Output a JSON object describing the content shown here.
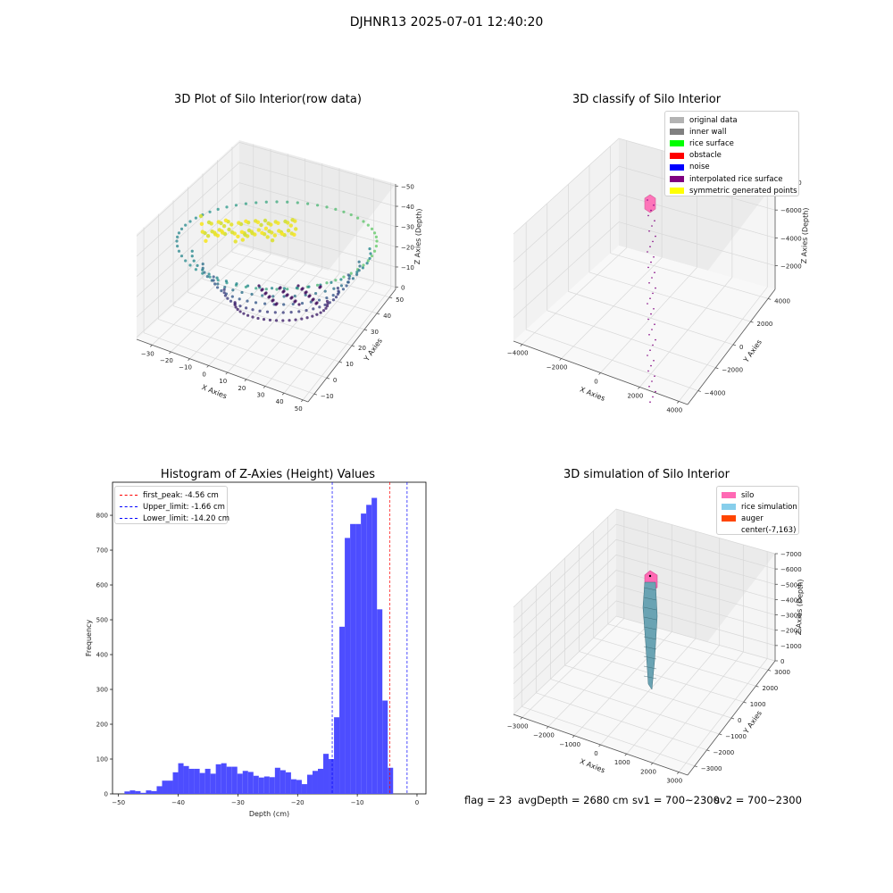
{
  "suptitle": "DJHNR13 2025-07-01 12:40:20",
  "footer": {
    "flag": "flag = 23",
    "avg_depth": "avgDepth = 2680 cm",
    "sv1": "sv1 = 700~2300",
    "sv2": "sv2 = 700~2300"
  },
  "chart_data": [
    {
      "type": "scatter3d",
      "title": "3D Plot of Silo Interior(row data)",
      "xlabel": "X Axies",
      "ylabel": "Y Axies",
      "zlabel": "Z Axies (Depth)",
      "xticks": [
        "−30",
        "−20",
        "−10",
        "0",
        "10",
        "20",
        "30",
        "40",
        "50"
      ],
      "yticks": [
        "−10",
        "0",
        "10",
        "20",
        "30",
        "40",
        "50"
      ],
      "zticks": [
        "0",
        "−10",
        "−20",
        "−30",
        "−40",
        "−50"
      ],
      "xlim": [
        -35,
        50
      ],
      "ylim": [
        -15,
        50
      ],
      "zlim": [
        -52,
        2
      ],
      "colormap": "viridis"
    },
    {
      "type": "scatter3d",
      "title": "3D classify of Silo Interior",
      "xlabel": "X Axies",
      "ylabel": "Y Axies",
      "zlabel": "Z Axies (Depth)",
      "xticks": [
        "−4000",
        "−2000",
        "0",
        "2000",
        "4000"
      ],
      "yticks": [
        "−4000",
        "−2000",
        "0",
        "2000",
        "4000"
      ],
      "zticks": [
        "−2000",
        "−4000",
        "−6000",
        "−8000"
      ],
      "legend": [
        {
          "label": "original data",
          "color": "#b3b3b3"
        },
        {
          "label": "inner wall",
          "color": "#808080"
        },
        {
          "label": "rice surface",
          "color": "#00ff00"
        },
        {
          "label": "obstacle",
          "color": "#ff0000"
        },
        {
          "label": "noise",
          "color": "#0000ff"
        },
        {
          "label": "interpolated rice surface",
          "color": "#800080"
        },
        {
          "label": "symmetric generated points",
          "color": "#ffff00"
        }
      ]
    },
    {
      "type": "bar",
      "title": "Histogram of Z-Axies (Height) Values",
      "xlabel": "Depth (cm)",
      "ylabel": "Frequency",
      "xlim": [
        -51,
        1.5
      ],
      "ylim": [
        0,
        895
      ],
      "xticks": [
        -50,
        -40,
        -30,
        -20,
        -10,
        0
      ],
      "yticks": [
        0,
        100,
        200,
        300,
        400,
        500,
        600,
        700,
        800
      ],
      "bin_width": 0.9,
      "bar_color": "#4d4dff",
      "bins": [
        [
          -49.0,
          7
        ],
        [
          -48.1,
          10
        ],
        [
          -47.2,
          8
        ],
        [
          -46.3,
          3
        ],
        [
          -45.4,
          10
        ],
        [
          -44.5,
          8
        ],
        [
          -43.6,
          22
        ],
        [
          -42.7,
          38
        ],
        [
          -41.8,
          38
        ],
        [
          -40.9,
          62
        ],
        [
          -40.0,
          88
        ],
        [
          -39.1,
          80
        ],
        [
          -38.2,
          72
        ],
        [
          -37.3,
          72
        ],
        [
          -36.4,
          60
        ],
        [
          -35.5,
          72
        ],
        [
          -34.6,
          58
        ],
        [
          -33.7,
          85
        ],
        [
          -32.8,
          88
        ],
        [
          -31.9,
          78
        ],
        [
          -31.0,
          78
        ],
        [
          -30.1,
          58
        ],
        [
          -29.2,
          66
        ],
        [
          -28.3,
          63
        ],
        [
          -27.4,
          52
        ],
        [
          -26.5,
          47
        ],
        [
          -25.6,
          50
        ],
        [
          -24.7,
          48
        ],
        [
          -23.8,
          75
        ],
        [
          -22.9,
          68
        ],
        [
          -22.0,
          62
        ],
        [
          -21.1,
          42
        ],
        [
          -20.2,
          40
        ],
        [
          -19.3,
          28
        ],
        [
          -18.4,
          55
        ],
        [
          -17.5,
          66
        ],
        [
          -16.6,
          72
        ],
        [
          -15.7,
          115
        ],
        [
          -14.8,
          100
        ],
        [
          -13.9,
          220
        ],
        [
          -13.0,
          480
        ],
        [
          -12.1,
          735
        ],
        [
          -11.2,
          775
        ],
        [
          -10.3,
          775
        ],
        [
          -9.4,
          805
        ],
        [
          -8.5,
          830
        ],
        [
          -7.6,
          850
        ],
        [
          -6.7,
          530
        ],
        [
          -5.8,
          268
        ],
        [
          -4.9,
          75
        ]
      ],
      "vlines": [
        {
          "label": "first_peak: -4.56 cm",
          "x": -4.56,
          "color": "#ff0000"
        },
        {
          "label": "Upper_limit: -1.66 cm",
          "x": -1.66,
          "color": "#0000ff"
        },
        {
          "label": "Lower_limit: -14.20 cm",
          "x": -14.2,
          "color": "#0000ff"
        }
      ],
      "legend_position": "upper-left"
    },
    {
      "type": "surface3d",
      "title": "3D simulation of Silo Interior",
      "xlabel": "X Axies",
      "ylabel": "Y Axies",
      "zlabel": "Z Axies (Depth)",
      "xticks": [
        "−3000",
        "−2000",
        "−1000",
        "0",
        "1000",
        "2000",
        "3000"
      ],
      "yticks": [
        "−3000",
        "−2000",
        "−1000",
        "0",
        "1000",
        "2000",
        "3000"
      ],
      "zticks": [
        "0",
        "−1000",
        "−2000",
        "−3000",
        "−4000",
        "−5000",
        "−6000",
        "−7000"
      ],
      "legend": [
        {
          "label": "silo",
          "color": "#ff69b4"
        },
        {
          "label": "rice simulation",
          "color": "#87ceeb"
        },
        {
          "label": "auger",
          "color": "#ff4500"
        },
        {
          "label": "center(-7,163)",
          "color": ""
        }
      ]
    }
  ]
}
